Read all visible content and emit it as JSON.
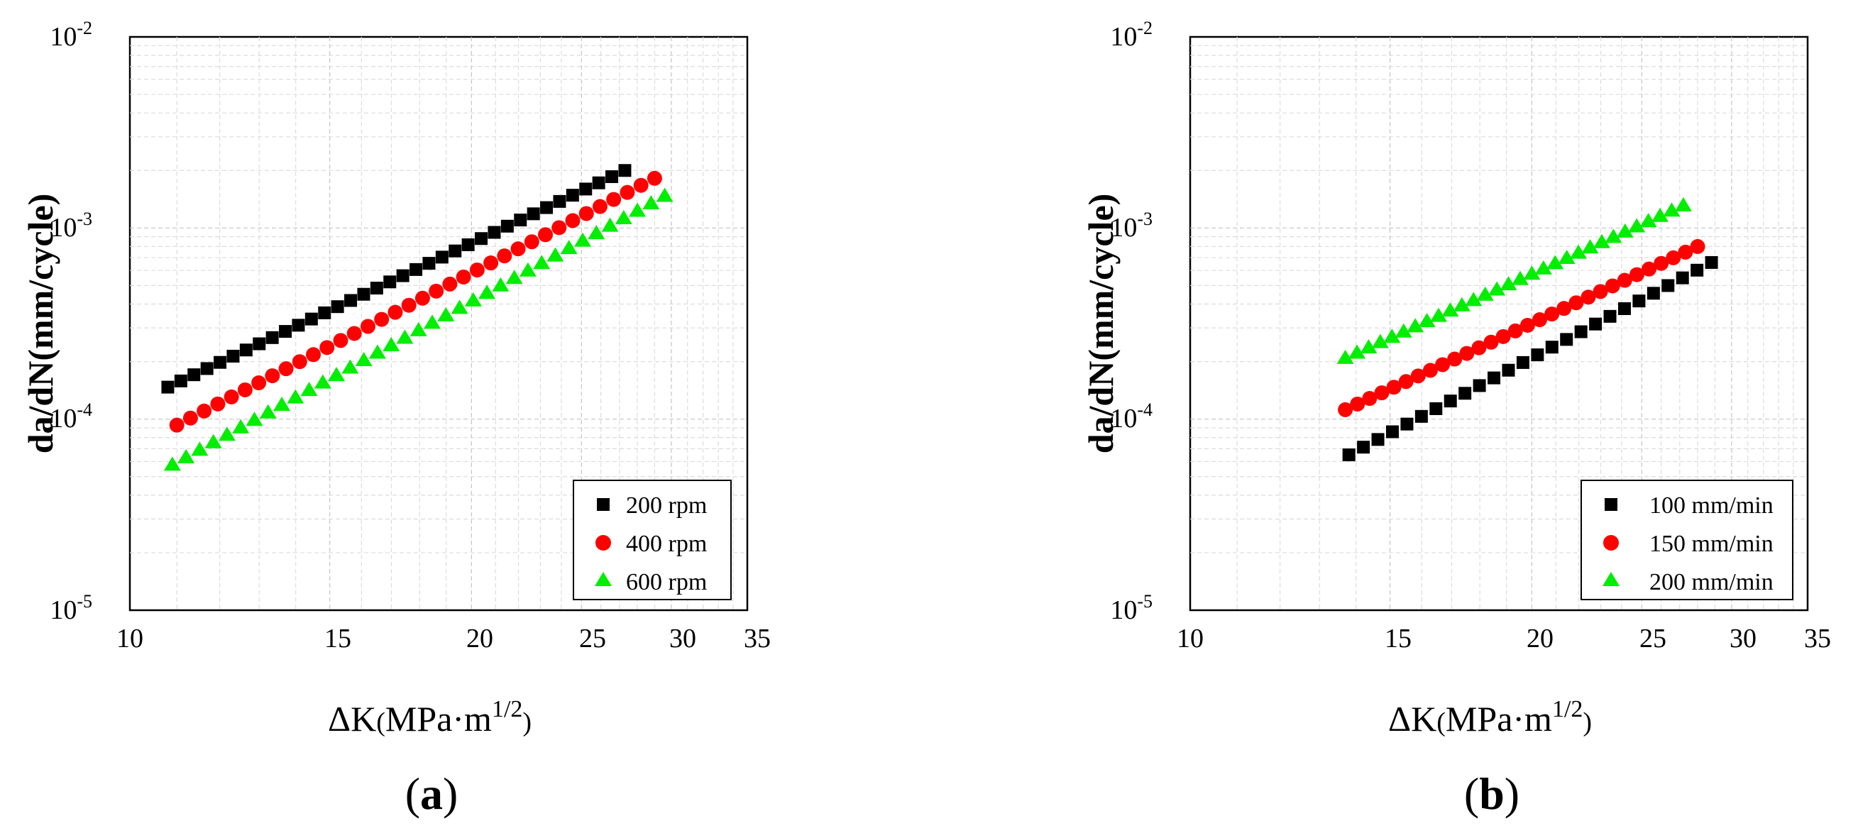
{
  "panels": [
    {
      "panel_label": "a",
      "chart_data": {
        "type": "scatter",
        "x_scale": "log",
        "y_scale": "log",
        "xlim": [
          10,
          35
        ],
        "ylim": [
          1e-05,
          0.01
        ],
        "x_ticks": [
          "10",
          "15",
          "20",
          "25",
          "30",
          "35"
        ],
        "x_tick_values": [
          10,
          15,
          20,
          25,
          30,
          35
        ],
        "y_ticks": [
          {
            "base": "10",
            "exp": "-5",
            "value": 1e-05
          },
          {
            "base": "10",
            "exp": "-4",
            "value": 0.0001
          },
          {
            "base": "10",
            "exp": "-3",
            "value": 0.001
          },
          {
            "base": "10",
            "exp": "-2",
            "value": 0.01
          }
        ],
        "xlabel": {
          "prefix": "ΔK",
          "open": "(",
          "unit": "MPa",
          "dot": "·",
          "m": "m",
          "exp": "1/2",
          "close": ")"
        },
        "ylabel": "da/dN(mm/cycle)",
        "grid": true,
        "legend_position": "bottom-right",
        "series": [
          {
            "name": "200 rpm",
            "marker": "square",
            "color": "#000000",
            "x0": 10.8,
            "x1": 27.3,
            "n": 36,
            "y0": 0.000147,
            "y1": 0.002
          },
          {
            "name": "400 rpm",
            "marker": "circle",
            "color": "#ff0000",
            "x0": 11.0,
            "x1": 29.0,
            "n": 36,
            "y0": 9.3e-05,
            "y1": 0.00182
          },
          {
            "name": "600 rpm",
            "marker": "triangle",
            "color": "#00ee00",
            "x0": 10.9,
            "x1": 29.6,
            "n": 37,
            "y0": 5.8e-05,
            "y1": 0.00148
          }
        ]
      }
    },
    {
      "panel_label": "b",
      "chart_data": {
        "type": "scatter",
        "x_scale": "log",
        "y_scale": "log",
        "xlim": [
          10,
          35
        ],
        "ylim": [
          1e-05,
          0.01
        ],
        "x_ticks": [
          "10",
          "15",
          "20",
          "25",
          "30",
          "35"
        ],
        "x_tick_values": [
          10,
          15,
          20,
          25,
          30,
          35
        ],
        "y_ticks": [
          {
            "base": "10",
            "exp": "-5",
            "value": 1e-05
          },
          {
            "base": "10",
            "exp": "-4",
            "value": 0.0001
          },
          {
            "base": "10",
            "exp": "-3",
            "value": 0.001
          },
          {
            "base": "10",
            "exp": "-2",
            "value": 0.01
          }
        ],
        "xlabel": {
          "prefix": "ΔK",
          "open": "(",
          "unit": "MPa",
          "dot": "·",
          "m": "m",
          "exp": "1/2",
          "close": ")"
        },
        "ylabel": "da/dN(mm/cycle)",
        "grid": true,
        "legend_position": "bottom-right",
        "series": [
          {
            "name": "100 mm/min",
            "marker": "square",
            "color": "#000000",
            "x0": 13.8,
            "x1": 28.8,
            "n": 26,
            "y0": 6.5e-05,
            "y1": 0.00066
          },
          {
            "name": "150 mm/min",
            "marker": "circle",
            "color": "#ff0000",
            "x0": 13.7,
            "x1": 28.0,
            "n": 30,
            "y0": 0.000112,
            "y1": 0.0008
          },
          {
            "name": "200 mm/min",
            "marker": "triangle",
            "color": "#00ee00",
            "x0": 13.7,
            "x1": 27.2,
            "n": 30,
            "y0": 0.00021,
            "y1": 0.00132
          }
        ]
      }
    }
  ]
}
